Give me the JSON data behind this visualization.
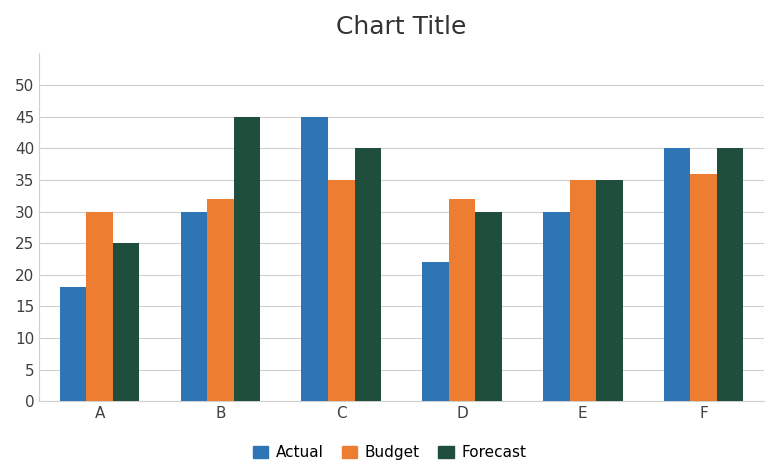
{
  "title": "Chart Title",
  "categories": [
    "A",
    "B",
    "C",
    "D",
    "E",
    "F"
  ],
  "series": [
    {
      "name": "Actual",
      "values": [
        18,
        30,
        45,
        22,
        30,
        40
      ],
      "color": "#2E75B6"
    },
    {
      "name": "Budget",
      "values": [
        30,
        32,
        35,
        32,
        35,
        36
      ],
      "color": "#ED7D31"
    },
    {
      "name": "Forecast",
      "values": [
        25,
        45,
        40,
        30,
        35,
        40
      ],
      "color": "#1F4E3D"
    }
  ],
  "ylim": [
    0,
    55
  ],
  "yticks": [
    0,
    5,
    10,
    15,
    20,
    25,
    30,
    35,
    40,
    45,
    50
  ],
  "title_fontsize": 18,
  "tick_fontsize": 11,
  "legend_fontsize": 11,
  "bar_width": 0.22,
  "grid_color": "#D0D0D0",
  "background_color": "#FFFFFF",
  "plot_bg_color": "#FFFFFF",
  "legend_loc": "lower center",
  "legend_ncol": 3
}
